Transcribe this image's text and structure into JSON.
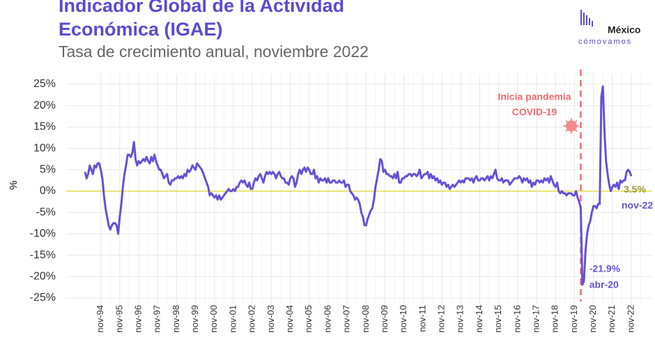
{
  "chart_data": {
    "type": "line",
    "title": [
      "Indicador Global de la Actividad",
      "Económica (IGAE)"
    ],
    "subtitle": "Tasa de crecimiento anual, noviembre 2022",
    "brand": [
      "México",
      "cómovamos"
    ],
    "ylabel": "%",
    "ylim": [
      -25,
      25
    ],
    "yticks": [
      {
        "value": 25,
        "label": "25%"
      },
      {
        "value": 20,
        "label": "20%"
      },
      {
        "value": 15,
        "label": "15%"
      },
      {
        "value": 10,
        "label": "10%"
      },
      {
        "value": 5,
        "label": "5%"
      },
      {
        "value": 0,
        "label": "0%"
      },
      {
        "value": -5,
        "label": "-5%"
      },
      {
        "value": -10,
        "label": "-10%"
      },
      {
        "value": -15,
        "label": "-15%"
      },
      {
        "value": -20,
        "label": "-20%"
      },
      {
        "value": -25,
        "label": "-25%"
      }
    ],
    "grid": true,
    "zero_line_color": "#e0dc4a",
    "event_label": [
      "Inicia pandemia",
      "COVID-19"
    ],
    "min_label": [
      "-21.9%",
      "abr-20"
    ],
    "last_label": [
      "3.5%",
      "nov-22"
    ],
    "categories": [
      null,
      null,
      null,
      null,
      null,
      null,
      null,
      null,
      null,
      null,
      "nov-94",
      null,
      null,
      null,
      null,
      null,
      null,
      null,
      null,
      null,
      null,
      null,
      "nov-95",
      null,
      null,
      null,
      null,
      null,
      null,
      null,
      null,
      null,
      null,
      null,
      "nov-96",
      null,
      null,
      null,
      null,
      null,
      null,
      null,
      null,
      null,
      null,
      null,
      "nov-97",
      null,
      null,
      null,
      null,
      null,
      null,
      null,
      null,
      null,
      null,
      null,
      "nov-98",
      null,
      null,
      null,
      null,
      null,
      null,
      null,
      null,
      null,
      null,
      null,
      "nov-99",
      null,
      null,
      null,
      null,
      null,
      null,
      null,
      null,
      null,
      null,
      null,
      "nov-00",
      null,
      null,
      null,
      null,
      null,
      null,
      null,
      null,
      null,
      null,
      null,
      "nov-01",
      null,
      null,
      null,
      null,
      null,
      null,
      null,
      null,
      null,
      null,
      null,
      "nov-02",
      null,
      null,
      null,
      null,
      null,
      null,
      null,
      null,
      null,
      null,
      null,
      "nov-03",
      null,
      null,
      null,
      null,
      null,
      null,
      null,
      null,
      null,
      null,
      null,
      "nov-04",
      null,
      null,
      null,
      null,
      null,
      null,
      null,
      null,
      null,
      null,
      null,
      "nov-05",
      null,
      null,
      null,
      null,
      null,
      null,
      null,
      null,
      null,
      null,
      null,
      "nov-06",
      null,
      null,
      null,
      null,
      null,
      null,
      null,
      null,
      null,
      null,
      null,
      "nov-07",
      null,
      null,
      null,
      null,
      null,
      null,
      null,
      null,
      null,
      null,
      null,
      "nov-08",
      null,
      null,
      null,
      null,
      null,
      null,
      null,
      null,
      null,
      null,
      null,
      "nov-09",
      null,
      null,
      null,
      null,
      null,
      null,
      null,
      null,
      null,
      null,
      null,
      "nov-10",
      null,
      null,
      null,
      null,
      null,
      null,
      null,
      null,
      null,
      null,
      null,
      "nov-11",
      null,
      null,
      null,
      null,
      null,
      null,
      null,
      null,
      null,
      null,
      null,
      "nov-12",
      null,
      null,
      null,
      null,
      null,
      null,
      null,
      null,
      null,
      null,
      null,
      "nov-13",
      null,
      null,
      null,
      null,
      null,
      null,
      null,
      null,
      null,
      null,
      null,
      "nov-14",
      null,
      null,
      null,
      null,
      null,
      null,
      null,
      null,
      null,
      null,
      null,
      "nov-15",
      null,
      null,
      null,
      null,
      null,
      null,
      null,
      null,
      null,
      null,
      null,
      "nov-16",
      null,
      null,
      null,
      null,
      null,
      null,
      null,
      null,
      null,
      null,
      null,
      "nov-17",
      null,
      null,
      null,
      null,
      null,
      null,
      null,
      null,
      null,
      null,
      null,
      "nov-18",
      null,
      null,
      null,
      null,
      null,
      null,
      null,
      null,
      null,
      null,
      null,
      "nov-19",
      null,
      null,
      null,
      null,
      null,
      null,
      null,
      null,
      null,
      null,
      null,
      "nov-20",
      null,
      null,
      null,
      null,
      null,
      null,
      null,
      null,
      null,
      null,
      null,
      "nov-21",
      null,
      null,
      null,
      null,
      null,
      null,
      null,
      null,
      null,
      null,
      null,
      "nov-22"
    ],
    "series": [
      {
        "color": "#6650d6",
        "values": [
          4.5,
          3,
          4,
          6,
          5,
          4,
          6,
          5.5,
          6.5,
          6.5,
          5,
          3,
          -1,
          -4,
          -6,
          -8,
          -9,
          -8,
          -7.5,
          -7.5,
          -8,
          -10,
          -6,
          -3,
          1,
          4,
          6,
          8.5,
          8.5,
          8,
          9,
          11.5,
          7.5,
          6,
          7,
          6.5,
          7,
          7.5,
          7,
          8,
          7,
          6.5,
          8,
          7,
          8.5,
          7,
          6,
          5,
          5,
          4,
          3,
          3.5,
          4,
          2,
          1.5,
          2.5,
          2.5,
          3,
          3,
          3.5,
          3,
          3.5,
          3,
          4,
          3.5,
          5,
          4.5,
          5,
          6,
          5.5,
          5,
          6.5,
          6,
          5.5,
          5,
          4,
          3,
          2,
          1,
          -1,
          -0.5,
          -1,
          -1.5,
          -1,
          -2,
          -1,
          -2,
          -1.5,
          -1,
          -0.5,
          0,
          0.5,
          0,
          0,
          0.5,
          0,
          1,
          1,
          2,
          2.5,
          2,
          2.5,
          1.5,
          1,
          2,
          0.5,
          0.5,
          2,
          3,
          2.5,
          3.5,
          4,
          3,
          2,
          3.5,
          4.5,
          4,
          4.5,
          4,
          4.5,
          4,
          3,
          4,
          4.5,
          3.5,
          3,
          3,
          2,
          2,
          1.5,
          3,
          3.5,
          3,
          1,
          2,
          4,
          5,
          4,
          5,
          5.5,
          4.5,
          5.5,
          5,
          4,
          4,
          5,
          3,
          3.5,
          2,
          3,
          2.5,
          2.5,
          3,
          2,
          3,
          2,
          2,
          2.5,
          2.5,
          2,
          2,
          2.5,
          2,
          2,
          2.5,
          1,
          1.5,
          1.5,
          0,
          -0.5,
          -1,
          -2,
          -1.5,
          -2,
          -3,
          -5,
          -6,
          -8,
          -8,
          -6.5,
          -5.5,
          -4.5,
          -4,
          -2,
          1,
          3,
          5,
          7.5,
          7,
          4.5,
          5,
          4,
          4,
          3.5,
          3.5,
          3,
          4,
          3,
          4.5,
          2,
          2,
          3,
          3,
          3.5,
          3.5,
          4,
          4,
          3.5,
          4,
          4,
          3.5,
          4,
          5,
          3,
          3.5,
          4,
          4,
          4.5,
          3,
          4,
          3,
          3.5,
          2.5,
          3,
          2,
          2.5,
          1.5,
          2,
          2,
          1,
          1.5,
          0.5,
          1,
          1.5,
          1,
          1.5,
          2,
          2.5,
          2,
          2.5,
          2,
          3,
          3,
          3,
          2.5,
          3,
          2,
          3,
          3.5,
          2.5,
          2.5,
          3,
          3,
          2.5,
          3,
          3.5,
          2.5,
          3.5,
          3,
          4,
          5,
          3,
          2.5,
          2.5,
          3,
          2,
          2.5,
          2.5,
          2.5,
          1.5,
          2,
          2.5,
          3,
          3,
          3,
          3.5,
          3,
          2,
          3,
          2.5,
          3,
          2,
          2.5,
          1,
          2,
          1.5,
          2.5,
          2.5,
          2,
          2.5,
          2,
          3,
          2.5,
          3,
          2,
          3.5,
          2.5,
          1.5,
          1,
          2,
          0,
          -0.5,
          0,
          -0.5,
          -0.5,
          -1,
          -0.5,
          -0.5,
          -0.5,
          -1,
          -1,
          0,
          -1.5,
          -2.5,
          -4,
          -21.9,
          -21,
          -14,
          -10,
          -8,
          -7,
          -5,
          -3.5,
          -3.5,
          -4,
          -3,
          -3,
          22,
          24.5,
          14,
          7,
          4,
          1.5,
          0,
          1,
          1.5,
          1,
          2,
          0.5,
          2.5,
          2,
          2.5,
          2.5,
          4.5,
          5,
          4.5,
          3.5
        ]
      }
    ]
  }
}
